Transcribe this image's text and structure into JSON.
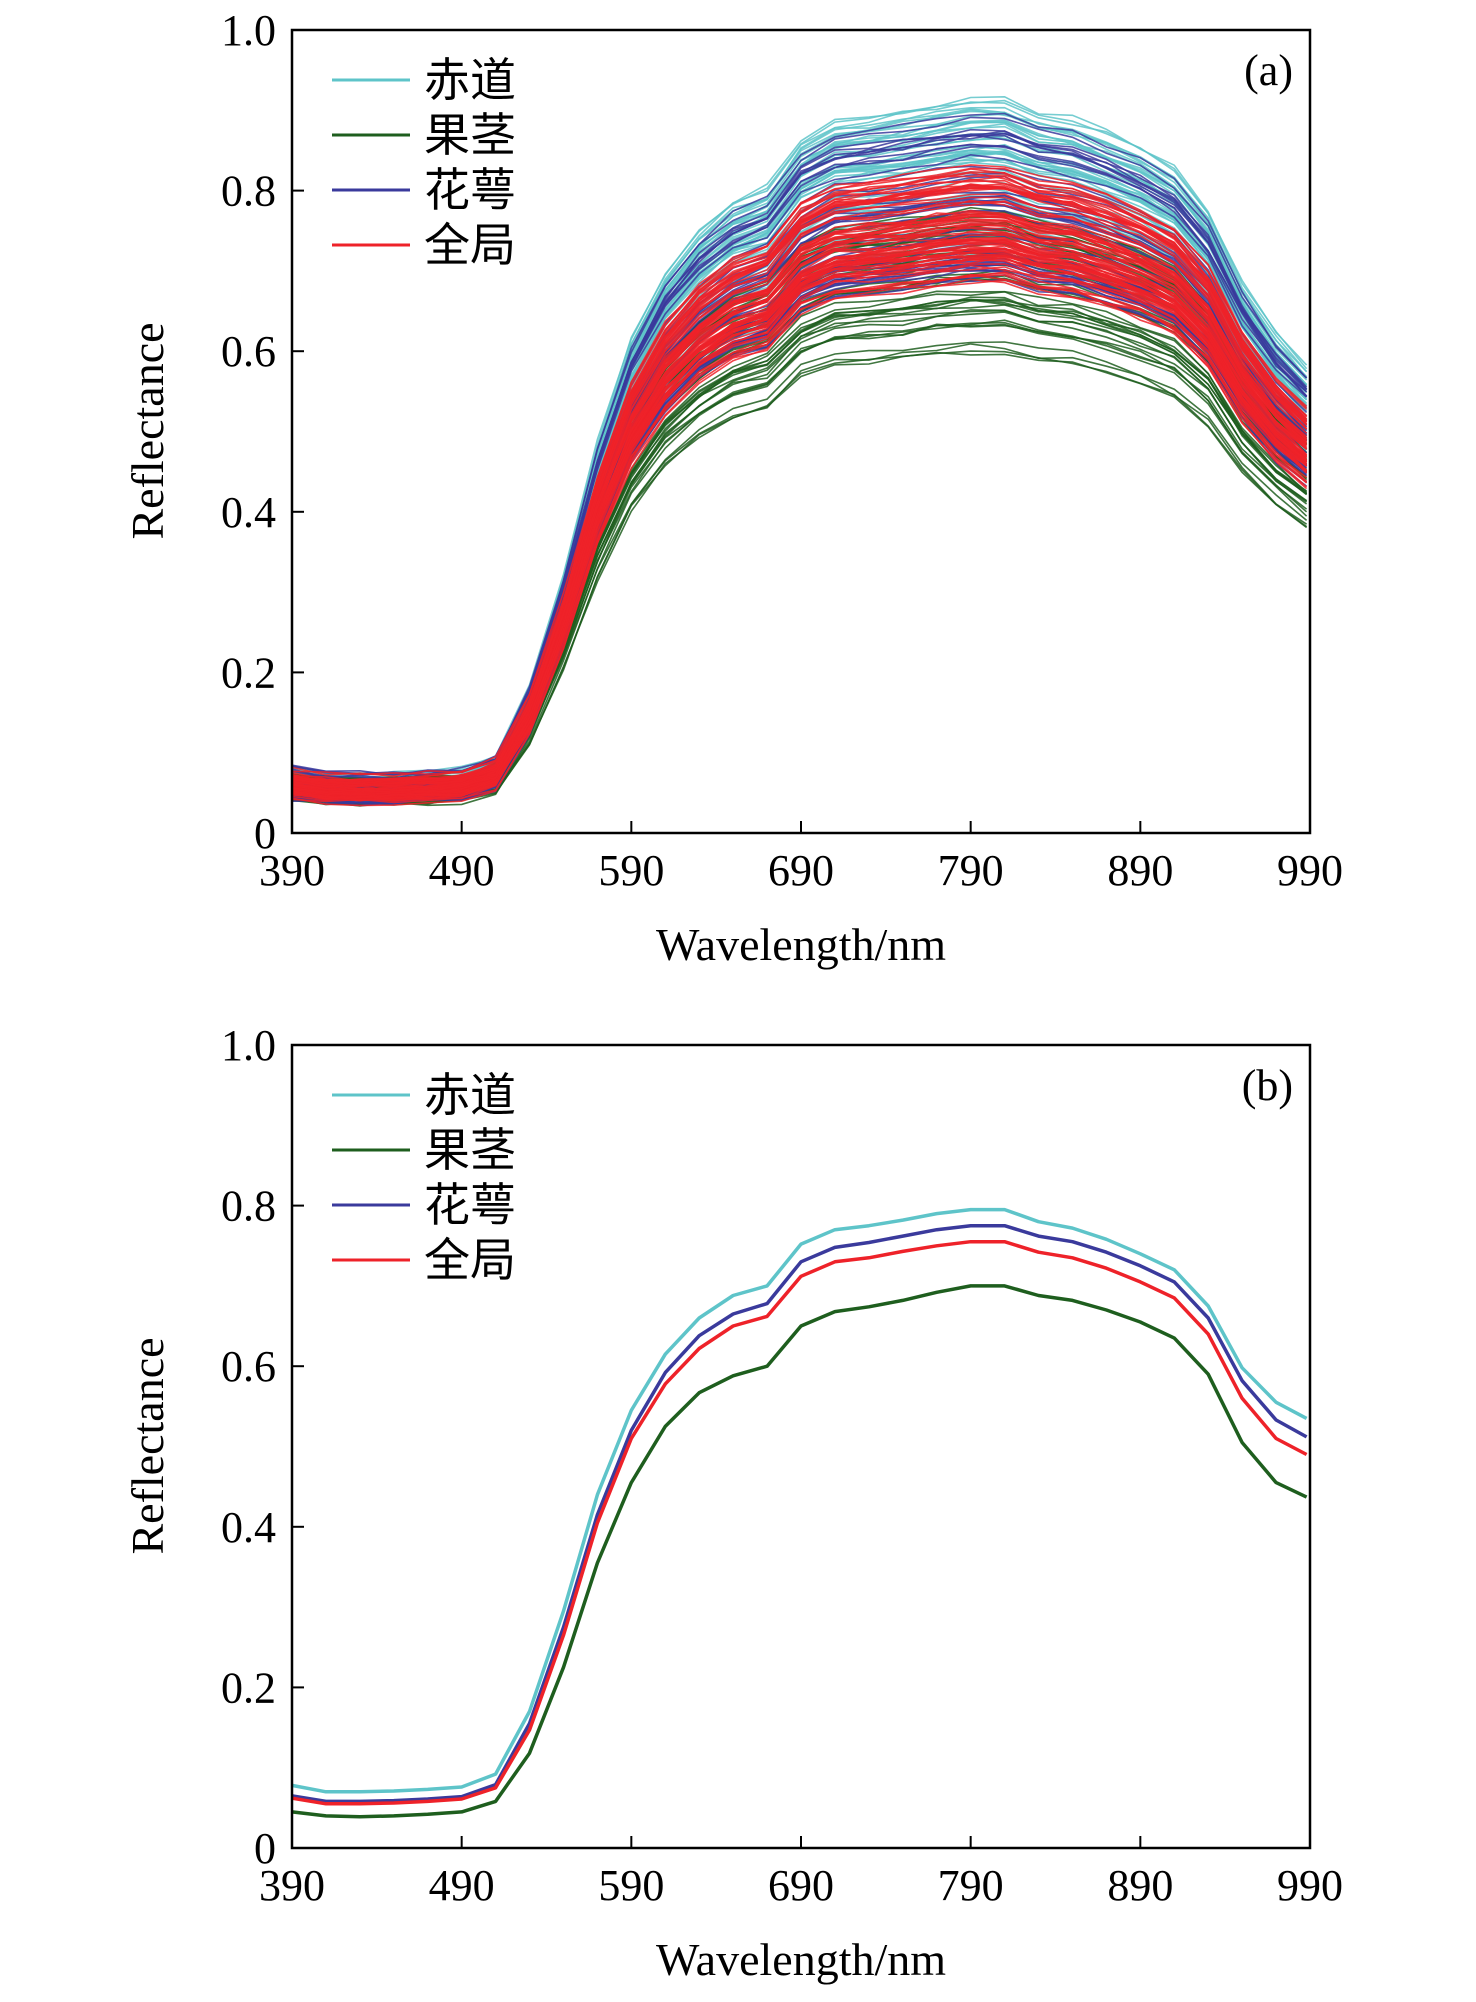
{
  "charts": [
    {
      "id": "a",
      "type": "line",
      "panel_label": "(a)",
      "xlabel": "Wavelength/nm",
      "ylabel": "Reflectance",
      "xlim": [
        390,
        990
      ],
      "ylim": [
        0,
        1.0
      ],
      "xticks": [
        390,
        490,
        590,
        690,
        790,
        890,
        990
      ],
      "yticks": [
        0,
        0.2,
        0.4,
        0.6,
        0.8,
        1.0
      ],
      "ytick_labels": [
        "0",
        "0.2",
        "0.4",
        "0.6",
        "0.8",
        "1.0"
      ],
      "legend_position": "top-left",
      "legend": [
        {
          "name": "赤道",
          "color": "#5ec4c9"
        },
        {
          "name": "果茎",
          "color": "#1e5e1e"
        },
        {
          "name": "花萼",
          "color": "#3a3a9c"
        },
        {
          "name": "全局",
          "color": "#ee2229"
        }
      ],
      "ensemble": [
        {
          "group": "赤道",
          "color": "#5ec4c9",
          "count": 45,
          "scale_range": [
            0.92,
            1.2
          ]
        },
        {
          "group": "果茎",
          "color": "#1e5e1e",
          "count": 45,
          "scale_range": [
            0.78,
            1.0
          ]
        },
        {
          "group": "花萼",
          "color": "#3a3a9c",
          "count": 45,
          "scale_range": [
            0.9,
            1.18
          ]
        },
        {
          "group": "全局",
          "color": "#ee2229",
          "count": 80,
          "scale_range": [
            0.9,
            1.08
          ]
        }
      ],
      "base_curve": {
        "x": [
          390,
          410,
          430,
          450,
          470,
          490,
          510,
          530,
          550,
          570,
          590,
          610,
          630,
          650,
          670,
          690,
          710,
          730,
          750,
          770,
          790,
          810,
          830,
          850,
          870,
          890,
          910,
          930,
          950,
          970,
          988
        ],
        "y": [
          0.062,
          0.056,
          0.055,
          0.056,
          0.058,
          0.061,
          0.075,
          0.15,
          0.27,
          0.41,
          0.52,
          0.59,
          0.635,
          0.665,
          0.68,
          0.73,
          0.75,
          0.755,
          0.76,
          0.767,
          0.772,
          0.772,
          0.758,
          0.752,
          0.738,
          0.722,
          0.7,
          0.655,
          0.58,
          0.525,
          0.49
        ]
      }
    },
    {
      "id": "b",
      "type": "line",
      "panel_label": "(b)",
      "xlabel": "Wavelength/nm",
      "ylabel": "Reflectance",
      "xlim": [
        390,
        990
      ],
      "ylim": [
        0,
        1.0
      ],
      "xticks": [
        390,
        490,
        590,
        690,
        790,
        890,
        990
      ],
      "yticks": [
        0,
        0.2,
        0.4,
        0.6,
        0.8,
        1.0
      ],
      "ytick_labels": [
        "0",
        "0.2",
        "0.4",
        "0.6",
        "0.8",
        "1.0"
      ],
      "legend_position": "top-left",
      "x": [
        390,
        410,
        430,
        450,
        470,
        490,
        510,
        530,
        550,
        570,
        590,
        610,
        630,
        650,
        670,
        690,
        710,
        730,
        750,
        770,
        790,
        810,
        830,
        850,
        870,
        890,
        910,
        930,
        950,
        970,
        988
      ],
      "series": [
        {
          "name": "赤道",
          "color": "#5ec4c9",
          "values": [
            0.078,
            0.07,
            0.07,
            0.071,
            0.073,
            0.076,
            0.092,
            0.17,
            0.295,
            0.44,
            0.545,
            0.615,
            0.66,
            0.688,
            0.7,
            0.752,
            0.77,
            0.775,
            0.782,
            0.79,
            0.795,
            0.795,
            0.78,
            0.772,
            0.758,
            0.74,
            0.72,
            0.675,
            0.598,
            0.555,
            0.535
          ]
        },
        {
          "name": "果茎",
          "color": "#1e5e1e",
          "values": [
            0.045,
            0.04,
            0.039,
            0.04,
            0.042,
            0.045,
            0.058,
            0.118,
            0.225,
            0.355,
            0.455,
            0.525,
            0.567,
            0.588,
            0.6,
            0.65,
            0.668,
            0.674,
            0.682,
            0.692,
            0.7,
            0.7,
            0.688,
            0.682,
            0.67,
            0.655,
            0.635,
            0.59,
            0.505,
            0.455,
            0.437
          ]
        },
        {
          "name": "花萼",
          "color": "#3a3a9c",
          "values": [
            0.065,
            0.058,
            0.058,
            0.059,
            0.061,
            0.064,
            0.079,
            0.155,
            0.275,
            0.415,
            0.52,
            0.592,
            0.638,
            0.665,
            0.678,
            0.73,
            0.748,
            0.754,
            0.762,
            0.77,
            0.775,
            0.775,
            0.762,
            0.755,
            0.742,
            0.725,
            0.705,
            0.66,
            0.582,
            0.533,
            0.512
          ]
        },
        {
          "name": "全局",
          "color": "#ee2229",
          "values": [
            0.062,
            0.055,
            0.055,
            0.056,
            0.058,
            0.061,
            0.075,
            0.147,
            0.265,
            0.405,
            0.51,
            0.578,
            0.622,
            0.65,
            0.662,
            0.712,
            0.73,
            0.735,
            0.743,
            0.75,
            0.755,
            0.755,
            0.742,
            0.735,
            0.722,
            0.705,
            0.685,
            0.64,
            0.56,
            0.51,
            0.49
          ]
        }
      ]
    }
  ]
}
